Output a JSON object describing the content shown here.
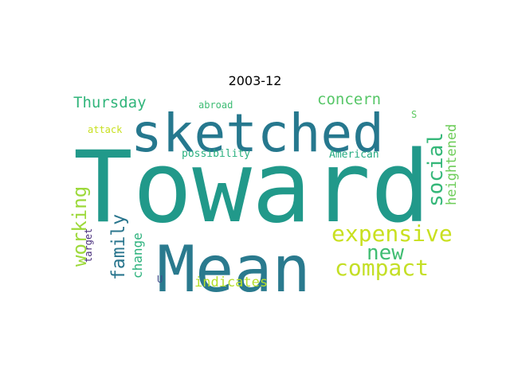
{
  "title": "2003-12",
  "words": [
    {
      "text": "Toward",
      "color": "#21998a"
    },
    {
      "text": "sketched",
      "color": "#26788e"
    },
    {
      "text": "Mean",
      "color": "#2a7a8e"
    },
    {
      "text": "expensive",
      "color": "#c9e020"
    },
    {
      "text": "compact",
      "color": "#c4df26"
    },
    {
      "text": "new",
      "color": "#40bd72"
    },
    {
      "text": "social",
      "color": "#35b779"
    },
    {
      "text": "heightened",
      "color": "#6dcd59"
    },
    {
      "text": "concern",
      "color": "#56c667"
    },
    {
      "text": "Thursday",
      "color": "#31b57b"
    },
    {
      "text": "working",
      "color": "#9dd93b"
    },
    {
      "text": "family",
      "color": "#2a768e"
    },
    {
      "text": "change",
      "color": "#2db27d"
    },
    {
      "text": "target",
      "color": "#472d7b"
    },
    {
      "text": "indicates",
      "color": "#b5de2b"
    },
    {
      "text": "possibility",
      "color": "#2ab07f"
    },
    {
      "text": "American",
      "color": "#25ab82"
    },
    {
      "text": "abroad",
      "color": "#3dbc74"
    },
    {
      "text": "attack",
      "color": "#c8e020"
    },
    {
      "text": "S",
      "color": "#5ec962"
    },
    {
      "text": "U",
      "color": "#3e4a89"
    }
  ]
}
